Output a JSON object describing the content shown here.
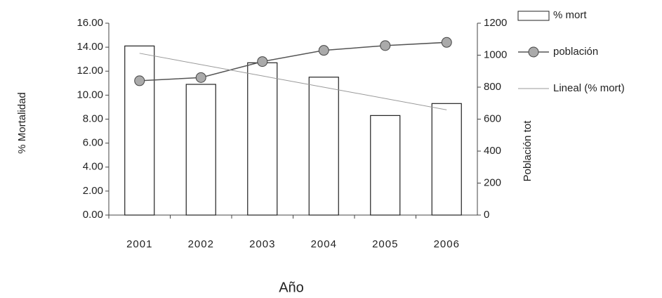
{
  "chart_data": {
    "type": "bar",
    "categories": [
      "2001",
      "2002",
      "2003",
      "2004",
      "2005",
      "2006"
    ],
    "series": [
      {
        "name": "% mort",
        "type": "bar",
        "color": "#ffffff",
        "values": [
          14.1,
          10.9,
          12.7,
          11.5,
          8.3,
          9.3
        ]
      },
      {
        "name": "población",
        "type": "line",
        "color": "#555555",
        "axis": "y2",
        "values": [
          840,
          860,
          960,
          1030,
          1060,
          1080
        ]
      }
    ],
    "trendline": {
      "name": "Lineal (% mort)",
      "color": "#999999"
    },
    "x_label": "Año",
    "y_label": "% Mortalidad",
    "y2_label": "Población tot",
    "ylim": [
      0,
      16
    ],
    "yticks": [
      {
        "value": 0,
        "label": "0.00"
      },
      {
        "value": 2,
        "label": "2.00"
      },
      {
        "value": 4,
        "label": "4.00"
      },
      {
        "value": 6,
        "label": "6.00"
      },
      {
        "value": 8,
        "label": "8.00"
      },
      {
        "value": 10,
        "label": "10.00"
      },
      {
        "value": 12,
        "label": "12.00"
      },
      {
        "value": 14,
        "label": "14.00"
      },
      {
        "value": 16,
        "label": "16.00"
      }
    ],
    "y2lim": [
      0,
      1200
    ],
    "y2ticks": [
      0,
      200,
      400,
      600,
      800,
      1000,
      1200
    ]
  }
}
